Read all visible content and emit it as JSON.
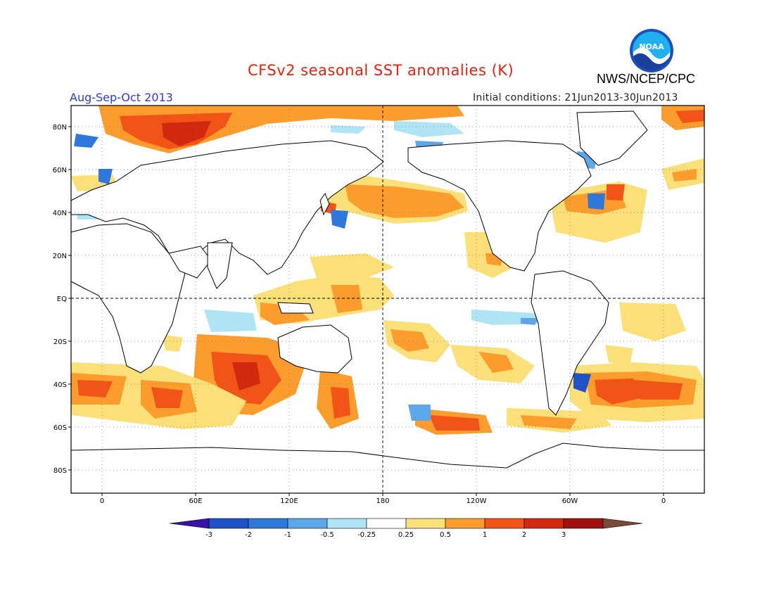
{
  "title": "CFSv2 seasonal SST anomalies (K)",
  "agency": "NWS/NCEP/CPC",
  "logo_text": "NOAA",
  "season": "Aug-Sep-Oct 2013",
  "initial_conditions": "Initial conditions: 21Jun2013-30Jun2013",
  "lat_labels": [
    "80N",
    "60N",
    "40N",
    "20N",
    "EQ",
    "20S",
    "40S",
    "60S",
    "80S"
  ],
  "lon_labels": [
    "0",
    "60E",
    "120E",
    "180",
    "120W",
    "60W",
    "0"
  ],
  "colorbar": {
    "ticks": [
      "-3",
      "-2",
      "-1",
      "-0.5",
      "-0.25",
      "0.25",
      "0.5",
      "1",
      "2",
      "3"
    ],
    "colors": [
      "#3a12a8",
      "#1f52c8",
      "#2e78dc",
      "#5ca6ea",
      "#aee4f4",
      "#ffffff",
      "#fbe07a",
      "#fb9c2c",
      "#f15416",
      "#d2280e",
      "#a21010",
      "#7a4a38"
    ]
  }
}
